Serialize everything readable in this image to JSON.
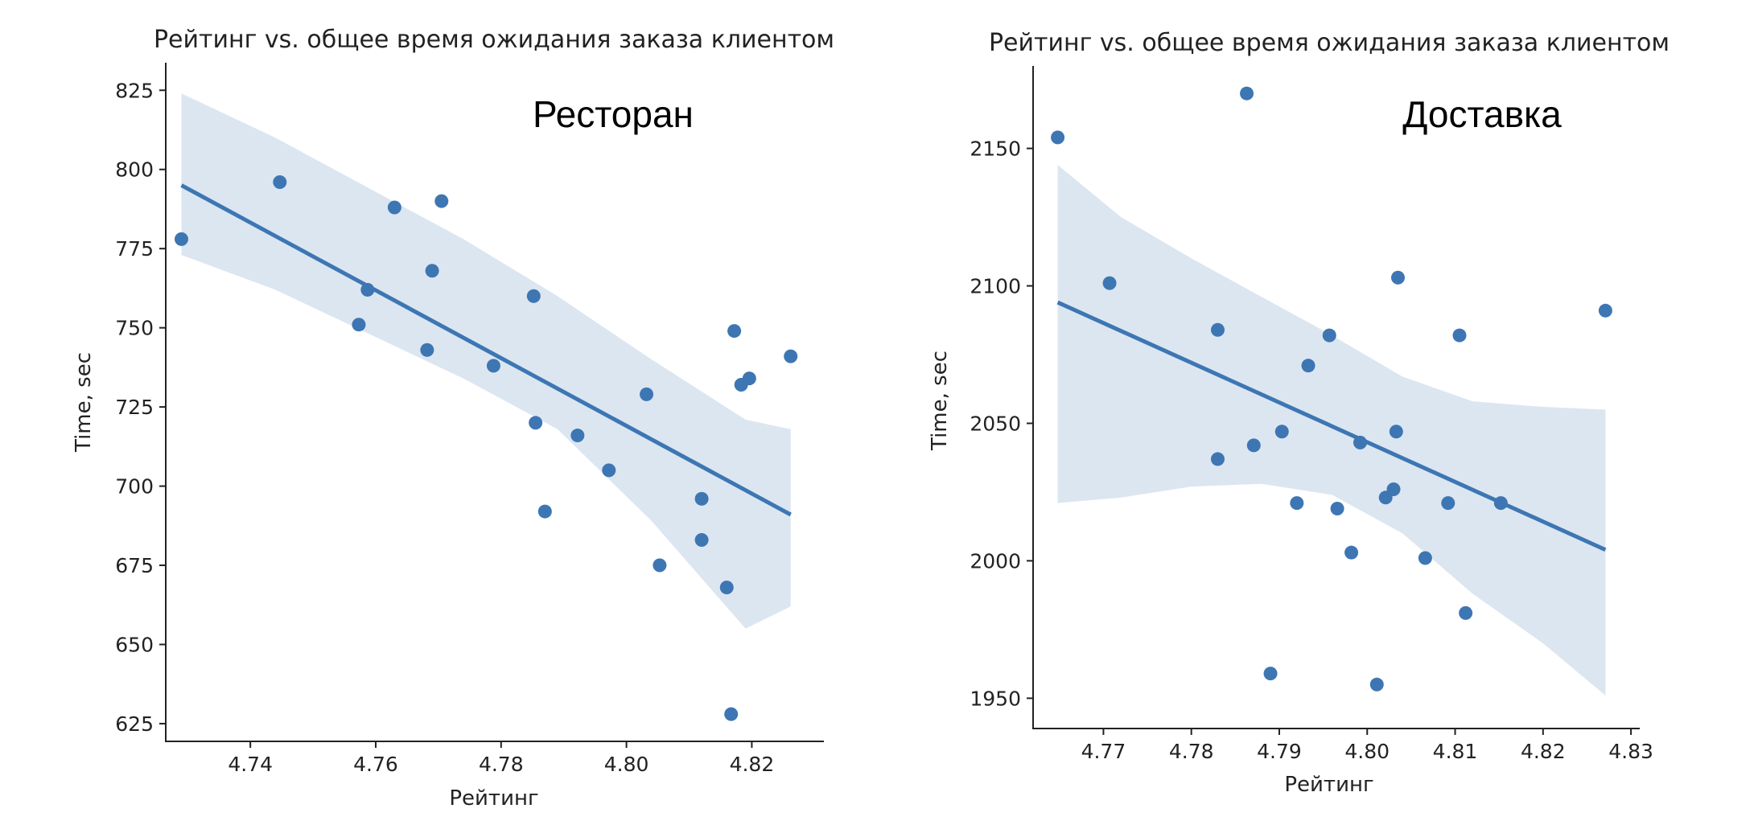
{
  "colors": {
    "points": "#3d76b3",
    "line": "#3d76b3",
    "band": "#dce6f1",
    "axis": "#222222"
  },
  "chart_data": [
    {
      "type": "scatter",
      "title": "Рейтинг vs. общее время ожидания заказа клиентом",
      "annotation": "Ресторан",
      "xlabel": "Рейтинг",
      "ylabel": "Time, sec",
      "xlim": [
        4.7265,
        4.8315
      ],
      "ylim": [
        619.4,
        833.7
      ],
      "xticks": [
        4.74,
        4.76,
        4.78,
        4.8,
        4.82
      ],
      "xtick_labels": [
        "4.74",
        "4.76",
        "4.78",
        "4.80",
        "4.82"
      ],
      "yticks": [
        625,
        650,
        675,
        700,
        725,
        750,
        775,
        800,
        825
      ],
      "ytick_labels": [
        "625",
        "650",
        "675",
        "700",
        "725",
        "750",
        "775",
        "800",
        "825"
      ],
      "grid": false,
      "points": [
        {
          "x": 4.729,
          "y": 778
        },
        {
          "x": 4.7447,
          "y": 796
        },
        {
          "x": 4.7573,
          "y": 751
        },
        {
          "x": 4.7587,
          "y": 762
        },
        {
          "x": 4.763,
          "y": 788
        },
        {
          "x": 4.7682,
          "y": 743
        },
        {
          "x": 4.769,
          "y": 768
        },
        {
          "x": 4.7705,
          "y": 790
        },
        {
          "x": 4.7788,
          "y": 738
        },
        {
          "x": 4.7852,
          "y": 760
        },
        {
          "x": 4.7855,
          "y": 720
        },
        {
          "x": 4.787,
          "y": 692
        },
        {
          "x": 4.7922,
          "y": 716
        },
        {
          "x": 4.7972,
          "y": 705
        },
        {
          "x": 4.8032,
          "y": 729
        },
        {
          "x": 4.8053,
          "y": 675
        },
        {
          "x": 4.812,
          "y": 696
        },
        {
          "x": 4.812,
          "y": 683
        },
        {
          "x": 4.816,
          "y": 668
        },
        {
          "x": 4.8167,
          "y": 628
        },
        {
          "x": 4.8172,
          "y": 749
        },
        {
          "x": 4.8183,
          "y": 732
        },
        {
          "x": 4.8196,
          "y": 734
        },
        {
          "x": 4.8262,
          "y": 741
        }
      ],
      "regression": {
        "x": [
          4.729,
          4.8262
        ],
        "y": [
          795,
          691
        ]
      },
      "confidence_band": {
        "x": [
          4.729,
          4.744,
          4.759,
          4.774,
          4.789,
          4.804,
          4.819,
          4.8262
        ],
        "upper": [
          824,
          810,
          794,
          778,
          760,
          740,
          721,
          718
        ],
        "lower": [
          773,
          762,
          748,
          734,
          718,
          689,
          655,
          662
        ]
      }
    },
    {
      "type": "scatter",
      "title": "Рейтинг vs. общее время ожидания заказа клиентом",
      "annotation": "Доставка",
      "xlabel": "Рейтинг",
      "ylabel": "Time, sec",
      "xlim": [
        4.762,
        4.831
      ],
      "ylim": [
        1939,
        2180
      ],
      "xticks": [
        4.77,
        4.78,
        4.79,
        4.8,
        4.81,
        4.82,
        4.83
      ],
      "xtick_labels": [
        "4.77",
        "4.78",
        "4.79",
        "4.80",
        "4.81",
        "4.82",
        "4.83"
      ],
      "yticks": [
        1950,
        2000,
        2050,
        2100,
        2150
      ],
      "ytick_labels": [
        "1950",
        "2000",
        "2050",
        "2100",
        "2150"
      ],
      "grid": false,
      "points": [
        {
          "x": 4.7648,
          "y": 2154
        },
        {
          "x": 4.7707,
          "y": 2101
        },
        {
          "x": 4.783,
          "y": 2084
        },
        {
          "x": 4.783,
          "y": 2037
        },
        {
          "x": 4.7863,
          "y": 2170
        },
        {
          "x": 4.7871,
          "y": 2042
        },
        {
          "x": 4.789,
          "y": 1959
        },
        {
          "x": 4.7903,
          "y": 2047
        },
        {
          "x": 4.792,
          "y": 2021
        },
        {
          "x": 4.7933,
          "y": 2071
        },
        {
          "x": 4.7957,
          "y": 2082
        },
        {
          "x": 4.7966,
          "y": 2019
        },
        {
          "x": 4.7982,
          "y": 2003
        },
        {
          "x": 4.7992,
          "y": 2043
        },
        {
          "x": 4.8011,
          "y": 1955
        },
        {
          "x": 4.8021,
          "y": 2023
        },
        {
          "x": 4.803,
          "y": 2026
        },
        {
          "x": 4.8033,
          "y": 2047
        },
        {
          "x": 4.8035,
          "y": 2103
        },
        {
          "x": 4.8066,
          "y": 2001
        },
        {
          "x": 4.8092,
          "y": 2021
        },
        {
          "x": 4.8105,
          "y": 2082
        },
        {
          "x": 4.8112,
          "y": 1981
        },
        {
          "x": 4.8152,
          "y": 2021
        },
        {
          "x": 4.8271,
          "y": 2091
        }
      ],
      "regression": {
        "x": [
          4.7648,
          4.8271
        ],
        "y": [
          2094,
          2004
        ]
      },
      "confidence_band": {
        "x": [
          4.7648,
          4.772,
          4.78,
          4.788,
          4.796,
          4.804,
          4.812,
          4.82,
          4.8271
        ],
        "upper": [
          2144,
          2125,
          2110,
          2096,
          2082,
          2067,
          2058,
          2056,
          2055
        ],
        "lower": [
          2021,
          2023,
          2027,
          2028,
          2024,
          2010,
          1988,
          1970,
          1951
        ]
      }
    }
  ]
}
